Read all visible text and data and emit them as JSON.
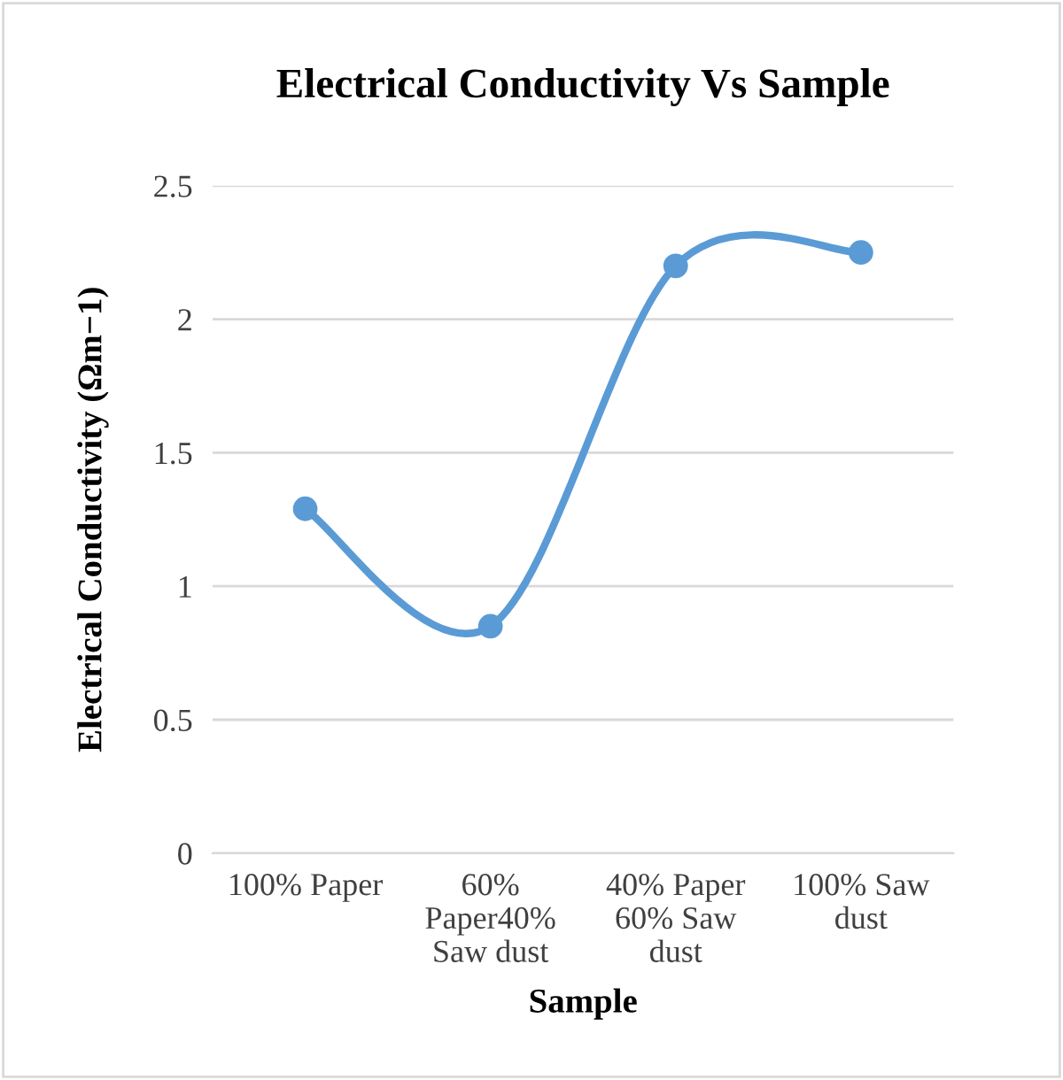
{
  "chart_data": {
    "type": "line",
    "title": "Electrical Conductivity Vs Sample",
    "xlabel": "Sample",
    "ylabel": "Electrical Conductivity (Ωm−1)",
    "categories": [
      "100% Paper",
      "60%\nPaper40%\nSaw dust",
      "40% Paper\n60% Saw\ndust",
      "100% Saw\ndust"
    ],
    "series": [
      {
        "color": "#5b9bd5",
        "values": [
          1.29,
          0.85,
          2.2,
          2.25
        ]
      }
    ],
    "ylim": [
      0,
      2.5
    ],
    "yticks": [
      0,
      0.5,
      1,
      1.5,
      2,
      2.5
    ],
    "grid": "y",
    "marker": "circle",
    "line_style": "solid",
    "legend": false
  }
}
